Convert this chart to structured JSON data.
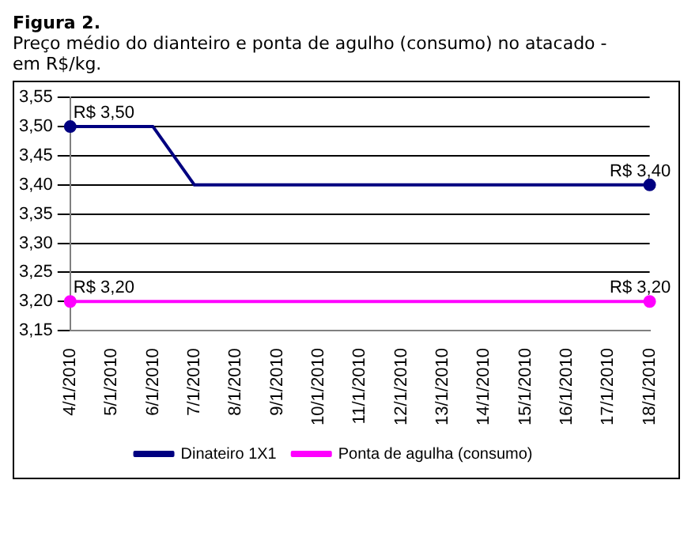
{
  "chart_data": {
    "type": "line",
    "title": "Figura 2.",
    "subtitle": "Preço médio do dianteiro e ponta de agulho (consumo) no atacado - em R$/kg.",
    "categories": [
      "4/1/2010",
      "5/1/2010",
      "6/1/2010",
      "7/1/2010",
      "8/1/2010",
      "9/1/2010",
      "10/1/2010",
      "11/1/2010",
      "12/1/2010",
      "13/1/2010",
      "14/1/2010",
      "15/1/2010",
      "16/1/2010",
      "17/1/2010",
      "18/1/2010"
    ],
    "series": [
      {
        "name": "Dinateiro 1X1",
        "color": "#000080",
        "values": [
          3.5,
          3.5,
          3.5,
          3.4,
          3.4,
          3.4,
          3.4,
          3.4,
          3.4,
          3.4,
          3.4,
          3.4,
          3.4,
          3.4,
          3.4
        ],
        "value_labels": [
          "R$ 3,50",
          null,
          null,
          null,
          null,
          null,
          null,
          null,
          null,
          null,
          null,
          null,
          null,
          null,
          "R$ 3,40"
        ]
      },
      {
        "name": "Ponta de agulha (consumo)",
        "color": "#ff00ff",
        "values": [
          3.2,
          3.2,
          3.2,
          3.2,
          3.2,
          3.2,
          3.2,
          3.2,
          3.2,
          3.2,
          3.2,
          3.2,
          3.2,
          3.2,
          3.2
        ],
        "value_labels": [
          "R$ 3,20",
          null,
          null,
          null,
          null,
          null,
          null,
          null,
          null,
          null,
          null,
          null,
          null,
          null,
          "R$ 3,20"
        ]
      }
    ],
    "ylim": [
      3.15,
      3.55
    ],
    "yticks": [
      {
        "value": 3.15,
        "label": "3,15"
      },
      {
        "value": 3.2,
        "label": "3,20"
      },
      {
        "value": 3.25,
        "label": "3,25"
      },
      {
        "value": 3.3,
        "label": "3,30"
      },
      {
        "value": 3.35,
        "label": "3,35"
      },
      {
        "value": 3.4,
        "label": "3,40"
      },
      {
        "value": 3.45,
        "label": "3,45"
      },
      {
        "value": 3.5,
        "label": "3,50"
      },
      {
        "value": 3.55,
        "label": "3,55"
      }
    ],
    "grid": "y",
    "legend": "bottom",
    "line_style": "solid"
  }
}
